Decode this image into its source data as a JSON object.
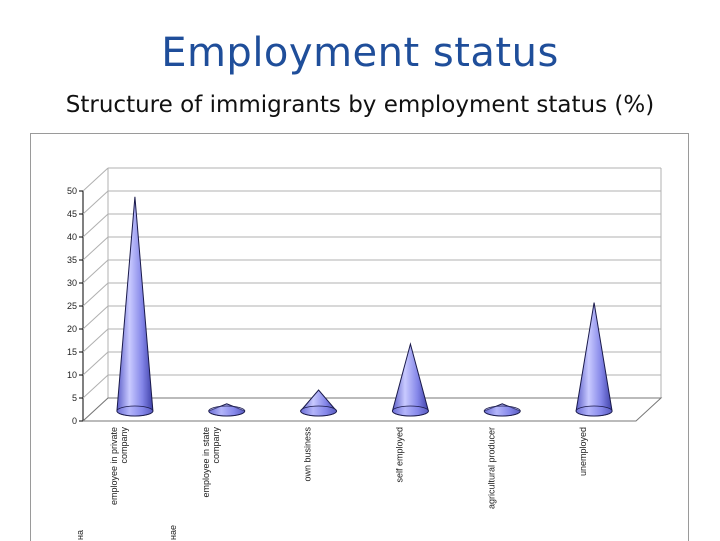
{
  "slide": {
    "title": "Employment status",
    "subtitle": "Structure of immigrants by employment status (%)"
  },
  "chart_data": {
    "type": "bar",
    "shape": "cone-3d",
    "categories": [
      [
        "employee in private",
        "company"
      ],
      [
        "employee in state",
        "company"
      ],
      [
        "own business"
      ],
      [
        "self employed"
      ],
      [
        "agricultural producer"
      ],
      [
        "unemployed"
      ]
    ],
    "category_prefix_fragments": [
      "на",
      "нае"
    ],
    "series": [
      {
        "values": [
          47,
          2,
          5,
          15,
          2,
          24
        ],
        "color": "#8d8ff0"
      }
    ],
    "yticks": [
      0,
      5,
      10,
      15,
      20,
      25,
      30,
      35,
      40,
      45,
      50
    ],
    "ylim": [
      0,
      50
    ],
    "grid": true,
    "legend": false,
    "wall_color": "#ffffff",
    "gridline_color": "#b0b0b0"
  }
}
